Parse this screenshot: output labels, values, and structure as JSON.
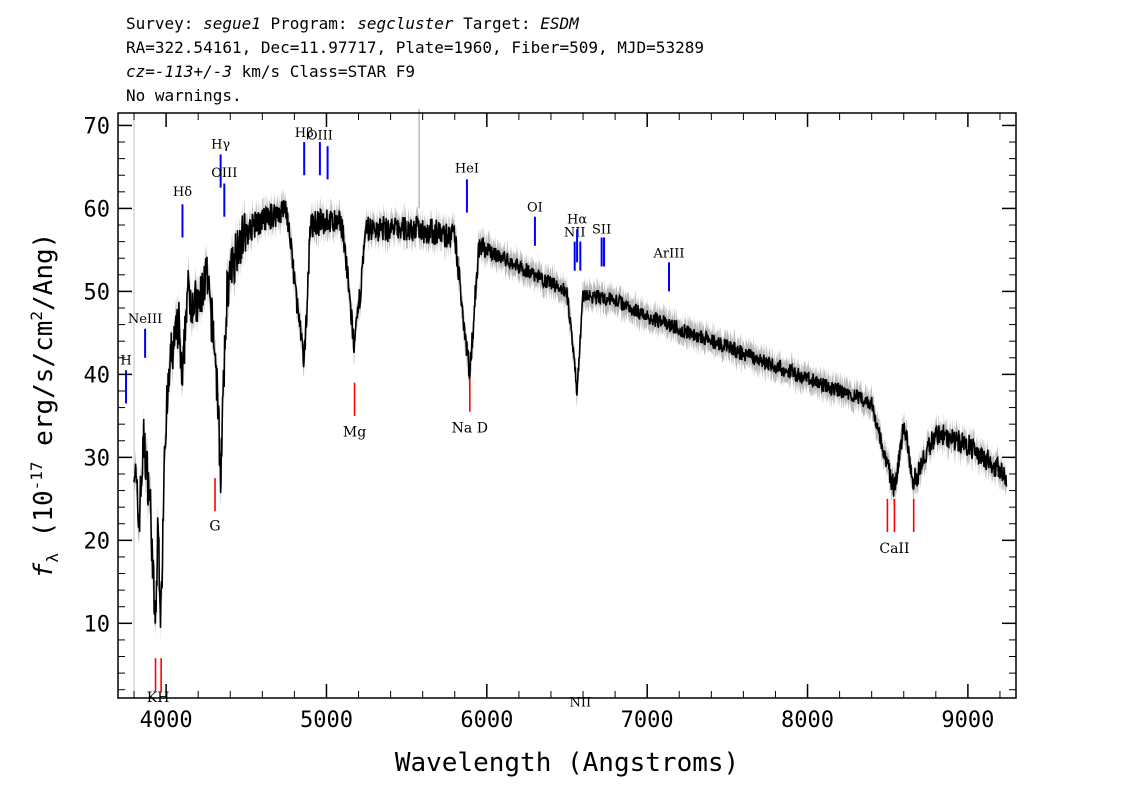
{
  "header": {
    "line1": {
      "survey_label": "Survey: ",
      "survey": "segue1",
      "program_label": " Program: ",
      "program": "segcluster",
      "target_label": " Target: ",
      "target": "ESDM"
    },
    "line2": "RA=322.54161, Dec=11.97717, Plate=1960, Fiber=509, MJD=53289",
    "line3": {
      "cz_label": "cz=",
      "cz_value": "-113+/-3",
      "cz_unit": " km/s Class=STAR F9"
    },
    "line4": "No warnings."
  },
  "chart_data": {
    "type": "line",
    "xlabel": "Wavelength (Angstroms)",
    "ylabel_prefix": "f",
    "ylabel_sub": "λ",
    "ylabel_main": "(10",
    "ylabel_exp": "-17",
    "ylabel_rest": " erg/s/cm",
    "ylabel_exp2": "2",
    "ylabel_end": "/Ang)",
    "xlim": [
      3700,
      9300
    ],
    "ylim": [
      1,
      71.5
    ],
    "xticks": [
      4000,
      5000,
      6000,
      7000,
      8000,
      9000
    ],
    "xtick_labels": [
      "4000",
      "5000",
      "6000",
      "7000",
      "8000",
      "9000"
    ],
    "yticks": [
      10,
      20,
      30,
      40,
      50,
      60,
      70
    ],
    "ytick_labels": [
      "10",
      "20",
      "30",
      "40",
      "50",
      "60",
      "70"
    ],
    "colors": {
      "spectrum": "#000000",
      "error": "#b8b8b8",
      "emission": "#0000ff",
      "absorption": "#ff0000"
    },
    "continuum": [
      [
        3800,
        30
      ],
      [
        3830,
        22
      ],
      [
        3860,
        32
      ],
      [
        3900,
        25
      ],
      [
        3933,
        9
      ],
      [
        3950,
        22
      ],
      [
        3968,
        10
      ],
      [
        3990,
        32
      ],
      [
        4030,
        42
      ],
      [
        4080,
        46
      ],
      [
        4101,
        38
      ],
      [
        4130,
        50
      ],
      [
        4200,
        48
      ],
      [
        4250,
        52
      ],
      [
        4300,
        44
      ],
      [
        4320,
        38
      ],
      [
        4340,
        28
      ],
      [
        4380,
        50
      ],
      [
        4450,
        56
      ],
      [
        4550,
        58
      ],
      [
        4650,
        59
      ],
      [
        4750,
        60
      ],
      [
        4861,
        41
      ],
      [
        4900,
        58
      ],
      [
        5000,
        58.5
      ],
      [
        5100,
        58
      ],
      [
        5175,
        43
      ],
      [
        5250,
        57.5
      ],
      [
        5400,
        57.5
      ],
      [
        5580,
        57.5
      ],
      [
        5700,
        57
      ],
      [
        5800,
        56.5
      ],
      [
        5893,
        40
      ],
      [
        5950,
        55.5
      ],
      [
        6100,
        54
      ],
      [
        6300,
        52
      ],
      [
        6500,
        50
      ],
      [
        6563,
        38
      ],
      [
        6600,
        49.5
      ],
      [
        6800,
        49
      ],
      [
        7000,
        47
      ],
      [
        7200,
        45.5
      ],
      [
        7400,
        44
      ],
      [
        7600,
        42.5
      ],
      [
        7800,
        41
      ],
      [
        8000,
        39.5
      ],
      [
        8200,
        38
      ],
      [
        8400,
        36.5
      ],
      [
        8498,
        29
      ],
      [
        8542,
        26
      ],
      [
        8600,
        34
      ],
      [
        8662,
        27
      ],
      [
        8800,
        33
      ],
      [
        9000,
        31.5
      ],
      [
        9200,
        28.5
      ],
      [
        9240,
        27
      ]
    ],
    "emission_lines": [
      {
        "label": "H",
        "wave": 3750,
        "y1": 36.5,
        "y2": 40.5,
        "label_y": 41.2
      },
      {
        "label": "NeIII",
        "wave": 3869,
        "y1": 42,
        "y2": 45.5,
        "label_y": 46.2
      },
      {
        "label": "Hδ",
        "wave": 4102,
        "y1": 56.5,
        "y2": 60.5,
        "label_y": 61.5
      },
      {
        "label": "Hγ",
        "wave": 4340,
        "y1": 62.5,
        "y2": 66.5,
        "label_y": 67.2
      },
      {
        "label": "OIII",
        "wave": 4363,
        "y1": 59,
        "y2": 63,
        "label_y": 63.8
      },
      {
        "label": "Hβ",
        "wave": 4861,
        "y1": 64,
        "y2": 68,
        "label_y": 68.6
      },
      {
        "label": "OIII",
        "wave": 4959,
        "y1": 64,
        "y2": 68,
        "label_y": 68.3
      },
      {
        "label": "",
        "wave": 5007,
        "y1": 63.5,
        "y2": 67.5,
        "label_y": 0
      },
      {
        "label": "HeI",
        "wave": 5876,
        "y1": 59.5,
        "y2": 63.5,
        "label_y": 64.3
      },
      {
        "label": "OI",
        "wave": 6300,
        "y1": 55.5,
        "y2": 59,
        "label_y": 59.6
      },
      {
        "label": "NII",
        "wave": 6548,
        "y1": 52.5,
        "y2": 56,
        "label_y": 56.6
      },
      {
        "label": "Hα",
        "wave": 6563,
        "y1": 53.5,
        "y2": 57.5,
        "label_y": 58.2
      },
      {
        "label": "NII",
        "wave": 6583,
        "y1": 52.5,
        "y2": 56,
        "label_y": 0
      },
      {
        "label": "SII",
        "wave": 6716,
        "y1": 53,
        "y2": 56.5,
        "label_y": 57
      },
      {
        "label": "",
        "wave": 6731,
        "y1": 53,
        "y2": 56.5,
        "label_y": 0
      },
      {
        "label": "ArIII",
        "wave": 7136,
        "y1": 50,
        "y2": 53.5,
        "label_y": 54.1
      }
    ],
    "absorption_lines": [
      {
        "label": "KH",
        "wave": 3950,
        "y1": 1.8,
        "y2": 5.8,
        "label_y": 0.5,
        "waves": [
          3934,
          3969
        ]
      },
      {
        "label": "G",
        "wave": 4305,
        "y1": 23.5,
        "y2": 27.5,
        "label_y": 21.2,
        "waves": [
          4305
        ]
      },
      {
        "label": "Mg",
        "wave": 5175,
        "y1": 35,
        "y2": 39,
        "label_y": 32.5,
        "waves": [
          5175
        ]
      },
      {
        "label": "Na D",
        "wave": 5894,
        "y1": 35.5,
        "y2": 39.5,
        "label_y": 33,
        "waves": [
          5894
        ]
      },
      {
        "label": "CaII",
        "wave": 8542,
        "y1": 21,
        "y2": 25,
        "label_y": 18.5,
        "waves": [
          8498,
          8542,
          8662
        ]
      }
    ]
  }
}
